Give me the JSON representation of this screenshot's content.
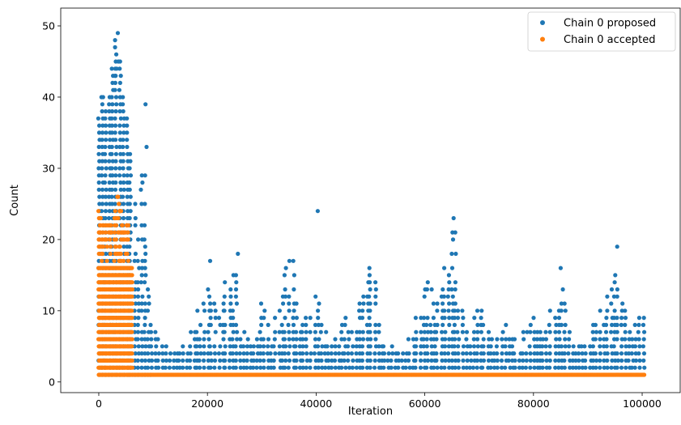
{
  "chart_data": {
    "type": "scatter",
    "title": "",
    "xlabel": "Iteration",
    "ylabel": "Count",
    "xlim": [
      -7000,
      107000
    ],
    "ylim": [
      -1.5,
      52.5
    ],
    "xticks": [
      0,
      20000,
      40000,
      60000,
      80000,
      100000
    ],
    "xtick_labels": [
      "0",
      "20000",
      "40000",
      "60000",
      "80000",
      "100000"
    ],
    "yticks": [
      0,
      10,
      20,
      30,
      40,
      50
    ],
    "ytick_labels": [
      "0",
      "10",
      "20",
      "30",
      "40",
      "50"
    ],
    "grid": false,
    "legend_position": "top-right",
    "series": [
      {
        "name": "Chain 0 proposed",
        "color": "#1f77b4",
        "profile": [
          {
            "x": 0,
            "max": 37
          },
          {
            "x": 500,
            "max": 40
          },
          {
            "x": 1500,
            "max": 37
          },
          {
            "x": 2500,
            "max": 43
          },
          {
            "x": 3500,
            "max": 49
          },
          {
            "x": 4500,
            "max": 40
          },
          {
            "x": 5500,
            "max": 36
          },
          {
            "x": 6000,
            "max": 30
          },
          {
            "x": 7000,
            "max": 25
          },
          {
            "x": 8000,
            "max": 31
          },
          {
            "x": 8500,
            "max": 33
          },
          {
            "x": 9000,
            "max": 18
          },
          {
            "x": 10000,
            "max": 7
          },
          {
            "x": 11000,
            "max": 6
          },
          {
            "x": 13000,
            "max": 4
          },
          {
            "x": 16000,
            "max": 6
          },
          {
            "x": 18000,
            "max": 9
          },
          {
            "x": 20000,
            "max": 14
          },
          {
            "x": 22000,
            "max": 10
          },
          {
            "x": 24000,
            "max": 16
          },
          {
            "x": 25500,
            "max": 18
          },
          {
            "x": 27000,
            "max": 6
          },
          {
            "x": 29000,
            "max": 5
          },
          {
            "x": 30000,
            "max": 12
          },
          {
            "x": 32000,
            "max": 6
          },
          {
            "x": 34000,
            "max": 16
          },
          {
            "x": 35500,
            "max": 17
          },
          {
            "x": 37000,
            "max": 8
          },
          {
            "x": 38500,
            "max": 11
          },
          {
            "x": 40000,
            "max": 13
          },
          {
            "x": 41000,
            "max": 8
          },
          {
            "x": 43000,
            "max": 5
          },
          {
            "x": 45000,
            "max": 9
          },
          {
            "x": 47000,
            "max": 7
          },
          {
            "x": 49500,
            "max": 16
          },
          {
            "x": 51000,
            "max": 15
          },
          {
            "x": 52000,
            "max": 5
          },
          {
            "x": 54000,
            "max": 5
          },
          {
            "x": 56000,
            "max": 6
          },
          {
            "x": 58000,
            "max": 7
          },
          {
            "x": 60000,
            "max": 14
          },
          {
            "x": 62000,
            "max": 13
          },
          {
            "x": 63000,
            "max": 14
          },
          {
            "x": 65000,
            "max": 21
          },
          {
            "x": 66500,
            "max": 11
          },
          {
            "x": 68000,
            "max": 7
          },
          {
            "x": 70000,
            "max": 11
          },
          {
            "x": 71000,
            "max": 7
          },
          {
            "x": 73000,
            "max": 5
          },
          {
            "x": 75000,
            "max": 8
          },
          {
            "x": 77000,
            "max": 6
          },
          {
            "x": 79000,
            "max": 7
          },
          {
            "x": 80500,
            "max": 10
          },
          {
            "x": 82000,
            "max": 6
          },
          {
            "x": 84000,
            "max": 12
          },
          {
            "x": 85500,
            "max": 13
          },
          {
            "x": 87000,
            "max": 5
          },
          {
            "x": 89000,
            "max": 5
          },
          {
            "x": 91000,
            "max": 8
          },
          {
            "x": 93000,
            "max": 11
          },
          {
            "x": 95000,
            "max": 16
          },
          {
            "x": 96500,
            "max": 11
          },
          {
            "x": 98000,
            "max": 7
          },
          {
            "x": 100000,
            "max": 11
          }
        ],
        "outliers": [
          {
            "x": 3500,
            "y": 49
          },
          {
            "x": 3600,
            "y": 45
          },
          {
            "x": 3300,
            "y": 44
          },
          {
            "x": 3000,
            "y": 43
          },
          {
            "x": 500,
            "y": 40
          },
          {
            "x": 8600,
            "y": 39
          },
          {
            "x": 8800,
            "y": 33
          },
          {
            "x": 40300,
            "y": 24
          },
          {
            "x": 65300,
            "y": 23
          },
          {
            "x": 65600,
            "y": 21
          },
          {
            "x": 65700,
            "y": 18
          },
          {
            "x": 95400,
            "y": 19
          },
          {
            "x": 85000,
            "y": 16
          },
          {
            "x": 20500,
            "y": 17
          },
          {
            "x": 25600,
            "y": 18
          },
          {
            "x": 35800,
            "y": 17
          },
          {
            "x": 49800,
            "y": 16
          }
        ]
      },
      {
        "name": "Chain 0 accepted",
        "color": "#ff7f0e",
        "profile": [
          {
            "x": 0,
            "max": 24
          },
          {
            "x": 500,
            "max": 23
          },
          {
            "x": 1500,
            "max": 22
          },
          {
            "x": 2500,
            "max": 22
          },
          {
            "x": 3500,
            "max": 26
          },
          {
            "x": 4500,
            "max": 22
          },
          {
            "x": 5500,
            "max": 22
          },
          {
            "x": 6200,
            "max": 16
          }
        ],
        "baseline": {
          "y": 1,
          "x_range": [
            6200,
            100500
          ]
        }
      }
    ]
  }
}
